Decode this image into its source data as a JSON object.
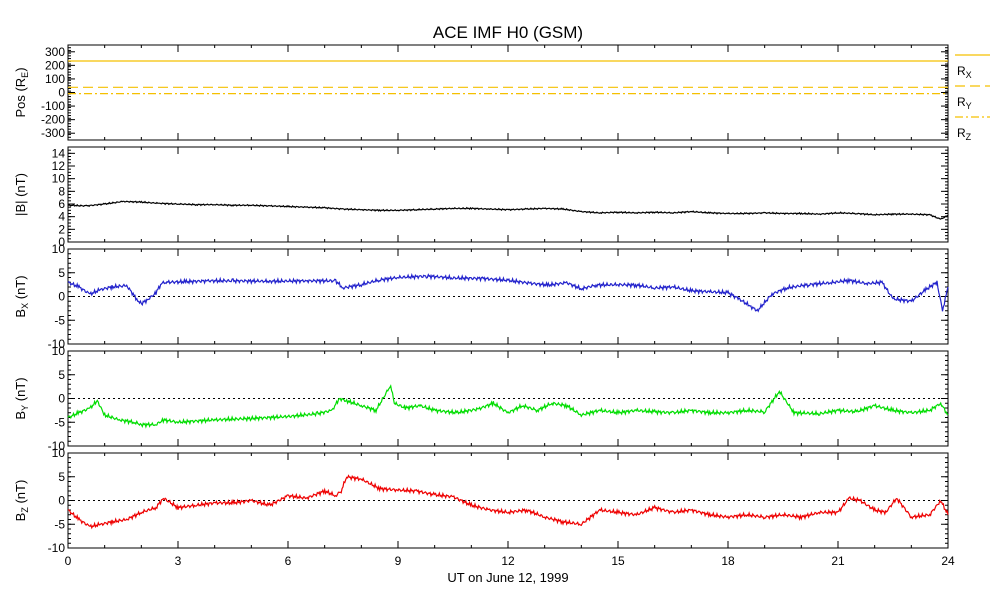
{
  "figure": {
    "title": "ACE IMF H0 (GSM)",
    "xlabel": "UT on June 12, 1999"
  },
  "chart_data": {
    "type": "line",
    "title": "ACE IMF H0 (GSM)",
    "xlabel": "UT on June 12, 1999",
    "xlim": [
      0,
      24
    ],
    "xticks": [
      0,
      3,
      6,
      9,
      12,
      15,
      18,
      21,
      24
    ],
    "panels": [
      {
        "id": "pos",
        "ylabel_main": "Pos (R",
        "ylabel_sub": "E",
        "ylabel_end": ")",
        "ylim": [
          -350,
          350
        ],
        "yticks": [
          -300,
          -200,
          -100,
          0,
          100,
          200,
          300
        ],
        "zero_line": false,
        "series": [
          {
            "name_main": "R",
            "name_sub": "X",
            "color": "#f5c000",
            "dash": "",
            "x": [
              0,
              24
            ],
            "y": [
              232,
              232
            ]
          },
          {
            "name_main": "R",
            "name_sub": "Y",
            "color": "#f5c000",
            "dash": "10,5",
            "x": [
              0,
              24
            ],
            "y": [
              38,
              38
            ]
          },
          {
            "name_main": "R",
            "name_sub": "Z",
            "color": "#f5c000",
            "dash": "8,3,2,3",
            "x": [
              0,
              24
            ],
            "y": [
              -8,
              -8
            ]
          }
        ]
      },
      {
        "id": "bmag",
        "ylabel_main": "|B| (nT)",
        "ylabel_sub": "",
        "ylabel_end": "",
        "ylim": [
          0,
          15
        ],
        "yticks": [
          0,
          2,
          4,
          6,
          8,
          10,
          12,
          14
        ],
        "zero_line": false,
        "series": [
          {
            "color": "#000000",
            "x": [
              0,
              0.5,
              1,
              1.5,
              2,
              2.5,
              3,
              3.5,
              4,
              4.5,
              5,
              5.5,
              6,
              6.5,
              7,
              7.5,
              8,
              8.5,
              9,
              9.5,
              10,
              10.5,
              11,
              11.5,
              12,
              12.5,
              13,
              13.5,
              14,
              14.5,
              15,
              15.5,
              16,
              16.5,
              17,
              17.5,
              18,
              18.5,
              19,
              19.5,
              20,
              20.5,
              21,
              21.5,
              22,
              22.5,
              23,
              23.5,
              23.8,
              24
            ],
            "y": [
              5.8,
              5.7,
              6.0,
              6.4,
              6.3,
              6.1,
              6.0,
              5.9,
              5.9,
              5.8,
              5.8,
              5.7,
              5.6,
              5.5,
              5.4,
              5.2,
              5.1,
              5.0,
              5.0,
              5.1,
              5.2,
              5.3,
              5.3,
              5.2,
              5.1,
              5.2,
              5.3,
              5.2,
              4.8,
              4.6,
              4.7,
              4.6,
              4.7,
              4.6,
              4.8,
              4.6,
              4.5,
              4.5,
              4.6,
              4.5,
              4.5,
              4.4,
              4.6,
              4.5,
              4.3,
              4.4,
              4.4,
              4.3,
              3.6,
              4.2
            ]
          }
        ]
      },
      {
        "id": "bx",
        "ylabel_main": "B",
        "ylabel_sub": "X",
        "ylabel_end": " (nT)",
        "ylim": [
          -10,
          10
        ],
        "yticks": [
          -10,
          -5,
          0,
          5,
          10
        ],
        "zero_line": true,
        "series": [
          {
            "color": "#2222cc",
            "x": [
              0,
              0.3,
              0.6,
              0.9,
              1.2,
              1.6,
              1.9,
              2.0,
              2.2,
              2.4,
              2.55,
              2.7,
              3.2,
              3.8,
              4.5,
              5.5,
              6.5,
              7.3,
              7.5,
              8.0,
              8.5,
              9.0,
              9.8,
              10.5,
              11.3,
              12.0,
              12.6,
              13.1,
              13.6,
              14.0,
              14.4,
              15.0,
              15.5,
              16.0,
              16.5,
              17.0,
              17.5,
              18.0,
              18.3,
              18.6,
              18.8,
              19.2,
              19.6,
              20.2,
              20.8,
              21.3,
              21.8,
              22.2,
              22.5,
              23.0,
              23.4,
              23.7,
              23.85,
              24.0
            ],
            "y": [
              3.0,
              2.0,
              0.5,
              1.5,
              2.0,
              2.3,
              -0.8,
              -1.5,
              -0.5,
              0.8,
              2.8,
              3.0,
              3.1,
              3.3,
              3.3,
              3.2,
              3.3,
              3.3,
              1.8,
              2.5,
              3.5,
              4.0,
              4.3,
              3.9,
              3.8,
              3.4,
              2.8,
              2.4,
              2.9,
              1.6,
              2.4,
              2.5,
              2.4,
              1.8,
              2.0,
              1.2,
              1.0,
              0.8,
              -0.5,
              -2.0,
              -3.0,
              0.5,
              1.8,
              2.5,
              2.9,
              3.4,
              2.7,
              3.0,
              -0.5,
              -1.0,
              1.5,
              3.0,
              -3.0,
              2.0
            ]
          }
        ]
      },
      {
        "id": "by",
        "ylabel_main": "B",
        "ylabel_sub": "Y",
        "ylabel_end": " (nT)",
        "ylim": [
          -10,
          10
        ],
        "yticks": [
          -10,
          -5,
          0,
          5,
          10
        ],
        "zero_line": true,
        "series": [
          {
            "color": "#00dd00",
            "x": [
              0,
              0.3,
              0.6,
              0.8,
              1.0,
              1.4,
              1.8,
              2.0,
              2.4,
              2.6,
              3.0,
              4.0,
              5.0,
              6.0,
              6.8,
              7.2,
              7.4,
              7.6,
              8.0,
              8.4,
              8.8,
              8.9,
              9.2,
              9.6,
              10.0,
              10.6,
              11.2,
              11.6,
              12.0,
              12.4,
              12.8,
              13.2,
              13.6,
              14.0,
              14.5,
              15.0,
              15.5,
              16.0,
              16.5,
              17.0,
              17.5,
              18.0,
              18.5,
              19.0,
              19.4,
              19.8,
              20.5,
              21.0,
              21.5,
              22.0,
              22.5,
              23.0,
              23.5,
              23.8,
              24.0
            ],
            "y": [
              -4.0,
              -3.0,
              -2.0,
              -0.5,
              -3.5,
              -4.5,
              -5.0,
              -5.5,
              -5.5,
              -4.5,
              -5.0,
              -4.5,
              -4.2,
              -3.8,
              -3.2,
              -2.5,
              0.0,
              -0.5,
              -1.5,
              -2.5,
              2.8,
              -1.0,
              -2.0,
              -1.5,
              -2.5,
              -3.0,
              -2.2,
              -1.0,
              -3.0,
              -1.5,
              -2.5,
              -1.0,
              -1.5,
              -3.5,
              -2.5,
              -3.0,
              -2.5,
              -2.8,
              -3.0,
              -2.5,
              -3.0,
              -3.0,
              -2.5,
              -2.8,
              1.5,
              -3.0,
              -3.2,
              -2.5,
              -2.8,
              -1.5,
              -2.5,
              -3.0,
              -2.5,
              -1.0,
              -3.5
            ]
          }
        ]
      },
      {
        "id": "bz",
        "ylabel_main": "B",
        "ylabel_sub": "Z",
        "ylabel_end": " (nT)",
        "ylim": [
          -10,
          10
        ],
        "yticks": [
          -10,
          -5,
          0,
          5,
          10
        ],
        "zero_line": true,
        "series": [
          {
            "color": "#ee0000",
            "x": [
              0,
              0.3,
              0.6,
              0.9,
              1.2,
              1.6,
              2.0,
              2.4,
              2.6,
              3.0,
              3.5,
              4.0,
              4.5,
              5.0,
              5.5,
              6.0,
              6.5,
              7.0,
              7.3,
              7.45,
              7.6,
              8.0,
              8.5,
              9.0,
              9.5,
              10.0,
              10.5,
              11.0,
              11.5,
              12.0,
              12.5,
              13.0,
              13.5,
              14.0,
              14.5,
              15.0,
              15.5,
              16.0,
              16.5,
              17.0,
              17.5,
              18.0,
              18.5,
              19.0,
              19.5,
              20.0,
              20.5,
              21.0,
              21.3,
              21.6,
              22.0,
              22.3,
              22.6,
              23.0,
              23.5,
              23.8,
              24.0
            ],
            "y": [
              -2.0,
              -4.0,
              -5.5,
              -5.0,
              -4.5,
              -4.0,
              -2.5,
              -1.5,
              0.5,
              -1.5,
              -1.0,
              -0.5,
              -0.5,
              0.0,
              -1.0,
              1.0,
              0.5,
              2.0,
              1.0,
              2.0,
              5.0,
              4.5,
              2.5,
              2.2,
              2.0,
              1.2,
              0.8,
              -1.0,
              -2.0,
              -2.5,
              -2.0,
              -3.5,
              -4.5,
              -5.0,
              -2.0,
              -2.5,
              -3.0,
              -1.5,
              -2.5,
              -2.0,
              -3.0,
              -3.5,
              -3.0,
              -3.5,
              -3.0,
              -3.5,
              -2.5,
              -2.5,
              0.5,
              0.0,
              -2.0,
              -2.5,
              0.5,
              -3.5,
              -3.0,
              0.0,
              -3.0
            ]
          }
        ]
      }
    ]
  }
}
